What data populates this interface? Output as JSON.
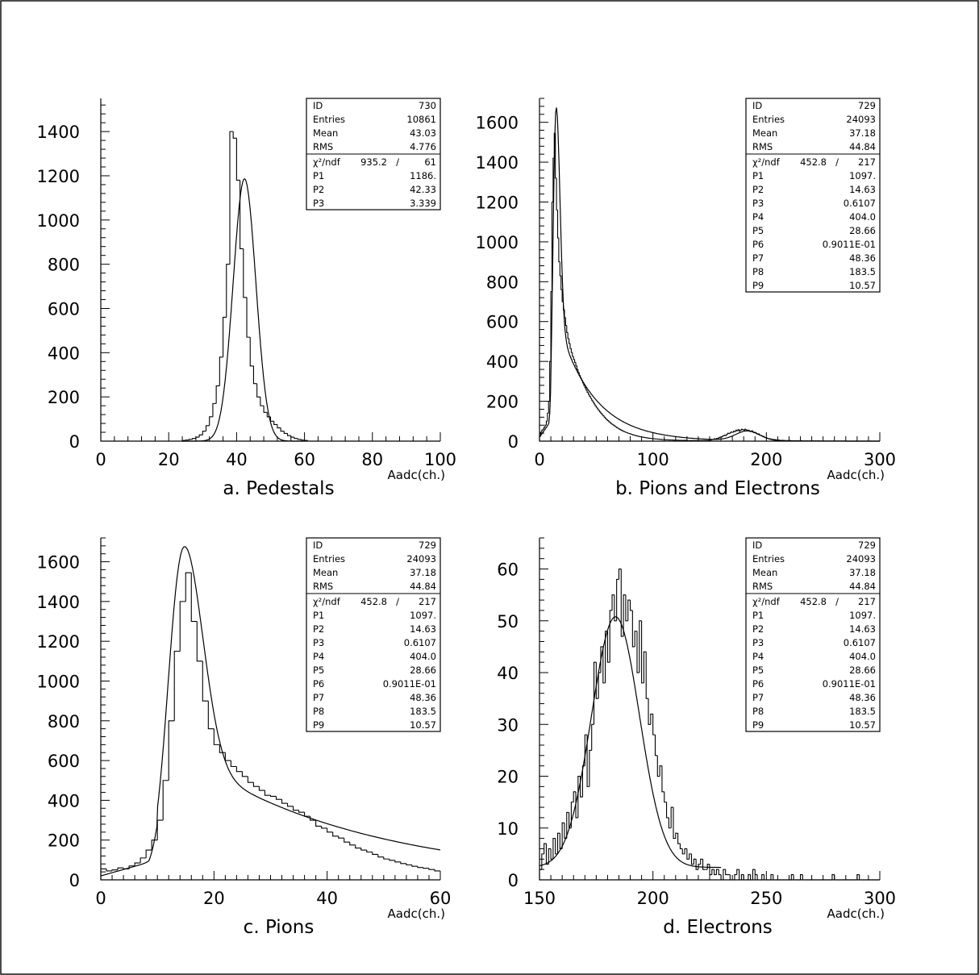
{
  "chart_data": [
    {
      "type": "histogram",
      "caption": "a. Pedestals",
      "xlabel": "Aadc(ch.)",
      "xlim": [
        0,
        100
      ],
      "ylim": [
        0,
        1550
      ],
      "xticks": [
        0,
        20,
        40,
        60,
        80,
        100
      ],
      "yticks": [
        0,
        200,
        400,
        600,
        800,
        1000,
        1200,
        1400
      ],
      "x_start": 24,
      "bin_width": 1,
      "values": [
        3,
        5,
        8,
        12,
        18,
        28,
        45,
        70,
        110,
        170,
        250,
        380,
        560,
        800,
        1400,
        1370,
        1180,
        870,
        650,
        470,
        340,
        260,
        200,
        160,
        130,
        110,
        90,
        75,
        60,
        45,
        35,
        25,
        18,
        12,
        8,
        5,
        3
      ],
      "fit": {
        "kind": "gauss",
        "p1": 1186,
        "p2": 42.33,
        "p3": 3.339,
        "range": [
          24,
          60
        ]
      },
      "stats": {
        "entries": [
          [
            "ID",
            "730"
          ],
          [
            "Entries",
            "10861"
          ],
          [
            "Mean",
            "43.03"
          ],
          [
            "RMS",
            "4.776"
          ]
        ],
        "chi2_label": "χ²/ndf",
        "chi2_value": "935.2",
        "ndf": "61",
        "params": [
          [
            "P1",
            "1186."
          ],
          [
            "P2",
            "42.33"
          ],
          [
            "P3",
            "3.339"
          ]
        ]
      }
    },
    {
      "type": "histogram",
      "caption": "b. Pions and Electrons",
      "xlabel": "Aadc(ch.)",
      "xlim": [
        0,
        300
      ],
      "ylim": [
        0,
        1720
      ],
      "xticks": [
        0,
        100,
        200,
        300
      ],
      "yticks": [
        0,
        200,
        400,
        600,
        800,
        1000,
        1200,
        1400,
        1600
      ],
      "x_start": 0,
      "bin_width": 1,
      "values": [
        25,
        45,
        55,
        60,
        70,
        80,
        100,
        140,
        200,
        400,
        750,
        1200,
        1420,
        1545,
        1320,
        1160,
        1020,
        900,
        830,
        760,
        700,
        660,
        620,
        580,
        545,
        515,
        490,
        465,
        445,
        425,
        410,
        395,
        378,
        360,
        345,
        330,
        318,
        305,
        292,
        280,
        268,
        256,
        245,
        235,
        225,
        215,
        205,
        196,
        187,
        178,
        170,
        162,
        154,
        147,
        140,
        133,
        127,
        120,
        114,
        108,
        103,
        98,
        93,
        88,
        84,
        80,
        76,
        72,
        68,
        65,
        61,
        58,
        55,
        52,
        49,
        47,
        44,
        42,
        40,
        38,
        36,
        34,
        32,
        30,
        29,
        27,
        26,
        24,
        23,
        22,
        21,
        20,
        19,
        18,
        17,
        16,
        15,
        14,
        14,
        13,
        12,
        12,
        11,
        11,
        10,
        10,
        9,
        9,
        8,
        8,
        8,
        7,
        7,
        7,
        6,
        6,
        6,
        6,
        5,
        5,
        5,
        5,
        5,
        4,
        4,
        4,
        4,
        4,
        4,
        4,
        3,
        3,
        3,
        3,
        3,
        3,
        3,
        3,
        3,
        3,
        3,
        3,
        3,
        3,
        3,
        3,
        3,
        3,
        3,
        4,
        5,
        6,
        8,
        8,
        12,
        10,
        14,
        13,
        18,
        20,
        20,
        24,
        27,
        30,
        28,
        35,
        40,
        38,
        42,
        46,
        44,
        50,
        48,
        55,
        52,
        58,
        50,
        55,
        60,
        58,
        55,
        60,
        57,
        52,
        55,
        50,
        48,
        52,
        45,
        42,
        44,
        38,
        35,
        36,
        30,
        28,
        26,
        24,
        20,
        18,
        16,
        14,
        12,
        12,
        10,
        9,
        8,
        8,
        7,
        6,
        6,
        5,
        4,
        4,
        4,
        4,
        3,
        3,
        3,
        3,
        3,
        3,
        2,
        2,
        2,
        2,
        2,
        2,
        2,
        2,
        2,
        2,
        1,
        1,
        1,
        1,
        1,
        1,
        1,
        1,
        1,
        1,
        1,
        1,
        1,
        1,
        1,
        1,
        0,
        0,
        0,
        0,
        0,
        0,
        0,
        0,
        0,
        0,
        0,
        0,
        0,
        0,
        0,
        0,
        0,
        0,
        0,
        0,
        0,
        0,
        0,
        0,
        0,
        0,
        0,
        0,
        0,
        0,
        0,
        0,
        0,
        0,
        0,
        0,
        0,
        0,
        0,
        0,
        0,
        0,
        0,
        0,
        0,
        0,
        0,
        0,
        0,
        0,
        0,
        0,
        0,
        0,
        0,
        0,
        0,
        0,
        0,
        0
      ],
      "fit": {
        "kind": "full",
        "range": [
          0,
          300
        ]
      },
      "stats": {
        "entries": [
          [
            "ID",
            "729"
          ],
          [
            "Entries",
            "24093"
          ],
          [
            "Mean",
            "37.18"
          ],
          [
            "RMS",
            "44.84"
          ]
        ],
        "chi2_label": "χ²/ndf",
        "chi2_value": "452.8",
        "ndf": "217",
        "params": [
          [
            "P1",
            "1097."
          ],
          [
            "P2",
            "14.63"
          ],
          [
            "P3",
            "0.6107"
          ],
          [
            "P4",
            "404.0"
          ],
          [
            "P5",
            "28.66"
          ],
          [
            "P6",
            "0.9011E-01"
          ],
          [
            "P7",
            "48.36"
          ],
          [
            "P8",
            "183.5"
          ],
          [
            "P9",
            "10.57"
          ]
        ]
      }
    },
    {
      "type": "histogram",
      "caption": "c. Pions",
      "xlabel": "Aadc(ch.)",
      "xlim": [
        0,
        60
      ],
      "ylim": [
        0,
        1720
      ],
      "xticks": [
        0,
        20,
        40,
        60
      ],
      "yticks": [
        0,
        200,
        400,
        600,
        800,
        1000,
        1200,
        1400,
        1600
      ],
      "x_start": 0,
      "bin_width": 1,
      "values": [
        55,
        45,
        50,
        60,
        55,
        70,
        85,
        110,
        150,
        200,
        300,
        500,
        800,
        1150,
        1400,
        1545,
        1300,
        1100,
        900,
        760,
        680,
        640,
        600,
        570,
        545,
        520,
        490,
        470,
        450,
        425,
        420,
        405,
        385,
        370,
        350,
        340,
        320,
        300,
        270,
        260,
        240,
        220,
        210,
        190,
        175,
        160,
        150,
        140,
        128,
        115,
        105,
        98,
        90,
        82,
        75,
        68,
        62,
        58,
        52,
        45
      ],
      "fit": {
        "kind": "full",
        "range": [
          0,
          60
        ]
      },
      "stats": {
        "entries": [
          [
            "ID",
            "729"
          ],
          [
            "Entries",
            "24093"
          ],
          [
            "Mean",
            "37.18"
          ],
          [
            "RMS",
            "44.84"
          ]
        ],
        "chi2_label": "χ²/ndf",
        "chi2_value": "452.8",
        "ndf": "217",
        "params": [
          [
            "P1",
            "1097."
          ],
          [
            "P2",
            "14.63"
          ],
          [
            "P3",
            "0.6107"
          ],
          [
            "P4",
            "404.0"
          ],
          [
            "P5",
            "28.66"
          ],
          [
            "P6",
            "0.9011E-01"
          ],
          [
            "P7",
            "48.36"
          ],
          [
            "P8",
            "183.5"
          ],
          [
            "P9",
            "10.57"
          ]
        ]
      }
    },
    {
      "type": "histogram",
      "caption": "d. Electrons",
      "xlabel": "Aadc(ch.)",
      "xlim": [
        150,
        300
      ],
      "ylim": [
        0,
        66
      ],
      "xticks": [
        150,
        200,
        250,
        300
      ],
      "yticks": [
        0,
        10,
        20,
        30,
        40,
        50,
        60
      ],
      "x_start": 150,
      "bin_width": 1,
      "values": [
        2,
        5,
        7,
        3,
        6,
        4,
        8,
        5,
        9,
        6,
        11,
        8,
        13,
        10,
        15,
        17,
        12,
        20,
        16,
        22,
        28,
        18,
        25,
        30,
        42,
        35,
        40,
        45,
        38,
        48,
        42,
        52,
        55,
        50,
        58,
        60,
        47,
        55,
        50,
        54,
        52,
        45,
        48,
        40,
        50,
        38,
        44,
        35,
        30,
        32,
        28,
        24,
        20,
        22,
        17,
        15,
        12,
        10,
        14,
        8,
        9,
        7,
        6,
        5,
        6,
        4,
        5,
        3,
        4,
        2,
        3,
        4,
        2,
        2,
        3,
        1,
        2,
        1,
        2,
        1,
        0,
        2,
        1,
        1,
        0,
        0,
        1,
        2,
        0,
        1,
        0,
        0,
        1,
        0,
        2,
        1,
        0,
        0,
        1,
        0,
        0,
        0,
        1,
        0,
        0,
        0,
        0,
        0,
        0,
        0,
        0,
        1,
        0,
        0,
        0,
        1,
        0,
        0,
        0,
        0,
        0,
        0,
        0,
        0,
        0,
        0,
        0,
        0,
        0,
        1,
        0,
        0,
        0,
        0,
        0,
        0,
        0,
        0,
        0,
        0,
        1,
        0,
        0,
        0,
        0,
        0,
        0,
        0,
        0,
        0
      ],
      "fit": {
        "kind": "electron",
        "p7": 48.36,
        "p8": 183.5,
        "p9": 10.57,
        "bg": 2.4,
        "range": [
          150,
          230
        ]
      },
      "stats": {
        "entries": [
          [
            "ID",
            "729"
          ],
          [
            "Entries",
            "24093"
          ],
          [
            "Mean",
            "37.18"
          ],
          [
            "RMS",
            "44.84"
          ]
        ],
        "chi2_label": "χ²/ndf",
        "chi2_value": "452.8",
        "ndf": "217",
        "params": [
          [
            "P1",
            "1097."
          ],
          [
            "P2",
            "14.63"
          ],
          [
            "P3",
            "0.6107"
          ],
          [
            "P4",
            "404.0"
          ],
          [
            "P5",
            "28.66"
          ],
          [
            "P6",
            "0.9011E-01"
          ],
          [
            "P7",
            "48.36"
          ],
          [
            "P8",
            "183.5"
          ],
          [
            "P9",
            "10.57"
          ]
        ]
      }
    }
  ]
}
